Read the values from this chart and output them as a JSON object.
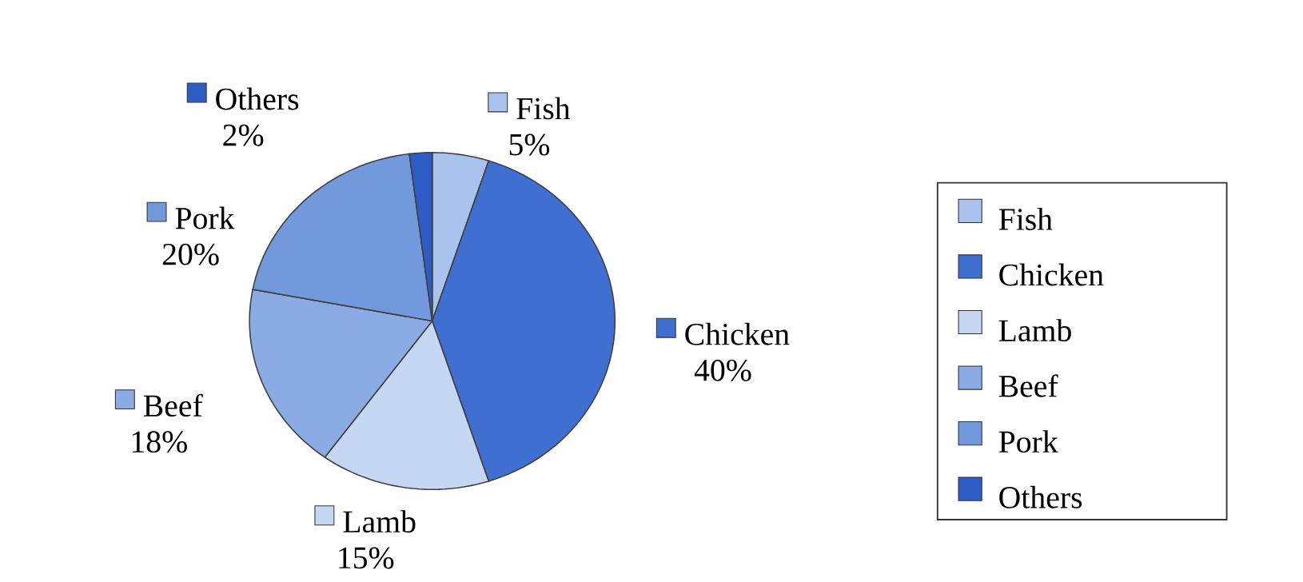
{
  "chart_data": {
    "type": "pie",
    "categories": [
      "Fish",
      "Chicken",
      "Lamb",
      "Beef",
      "Pork",
      "Others"
    ],
    "values": [
      5,
      40,
      15,
      18,
      20,
      2
    ],
    "value_labels": [
      "5%",
      "40%",
      "15%",
      "18%",
      "20%",
      "2%"
    ],
    "colors": [
      "#a9c3ec",
      "#3f6fd0",
      "#c6d7f3",
      "#8aabe3",
      "#7299dc",
      "#2c5cc4"
    ],
    "legend": "right"
  }
}
